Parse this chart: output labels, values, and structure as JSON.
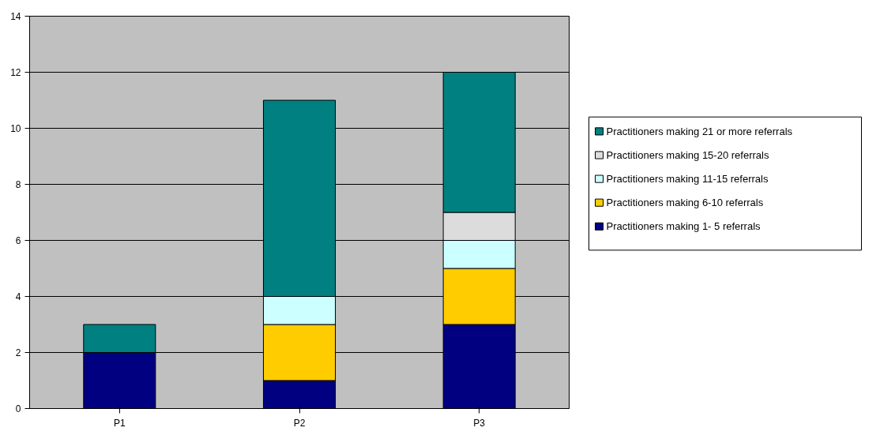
{
  "chart_data": {
    "type": "bar",
    "stacked": true,
    "categories": [
      "P1",
      "P2",
      "P3"
    ],
    "series": [
      {
        "name": "Practitioners making 1- 5 referrals",
        "color": "#000080",
        "values": [
          2,
          1,
          3
        ]
      },
      {
        "name": "Practitioners making 6-10 referrals",
        "color": "#ffcc00",
        "values": [
          0,
          2,
          2
        ]
      },
      {
        "name": "Practitioners making 11-15 referrals",
        "color": "#ccffff",
        "values": [
          0,
          1,
          1
        ]
      },
      {
        "name": "Practitioners making 15-20 referrals",
        "color": "#dcdcdc",
        "values": [
          0,
          0,
          1
        ]
      },
      {
        "name": "Practitioners making 21 or more referrals",
        "color": "#008080",
        "values": [
          1,
          7,
          5
        ]
      }
    ],
    "ylim": [
      0,
      14
    ],
    "yticks": [
      0,
      2,
      4,
      6,
      8,
      10,
      12,
      14
    ],
    "grid": "y",
    "legend": "right"
  }
}
